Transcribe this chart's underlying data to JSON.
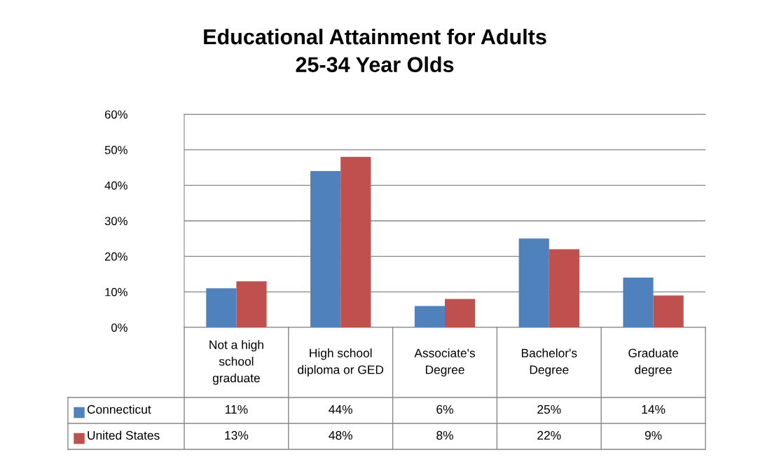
{
  "chart_data": {
    "type": "bar",
    "title": "Educational Attainment for Adults\n25-34 Year Olds",
    "categories": [
      "Not a high school graduate",
      "High school diploma or GED",
      "Associate's Degree",
      "Bachelor's Degree",
      "Graduate degree"
    ],
    "series": [
      {
        "name": "Connecticut",
        "color": "#4f81bd",
        "values": [
          11,
          44,
          6,
          25,
          14
        ],
        "value_labels": [
          "11%",
          "44%",
          "6%",
          "25%",
          "14%"
        ]
      },
      {
        "name": "United States",
        "color": "#c0504d",
        "values": [
          13,
          48,
          8,
          22,
          9
        ],
        "value_labels": [
          "13%",
          "48%",
          "8%",
          "22%",
          "9%"
        ]
      }
    ],
    "ylim": [
      0,
      60
    ],
    "yticks": [
      {
        "value": 0,
        "label": "0%"
      },
      {
        "value": 10,
        "label": "10%"
      },
      {
        "value": 20,
        "label": "20%"
      },
      {
        "value": 30,
        "label": "30%"
      },
      {
        "value": 40,
        "label": "40%"
      },
      {
        "value": 50,
        "label": "50%"
      },
      {
        "value": 60,
        "label": "60%"
      }
    ],
    "grid": "y",
    "legend": "bottom"
  }
}
